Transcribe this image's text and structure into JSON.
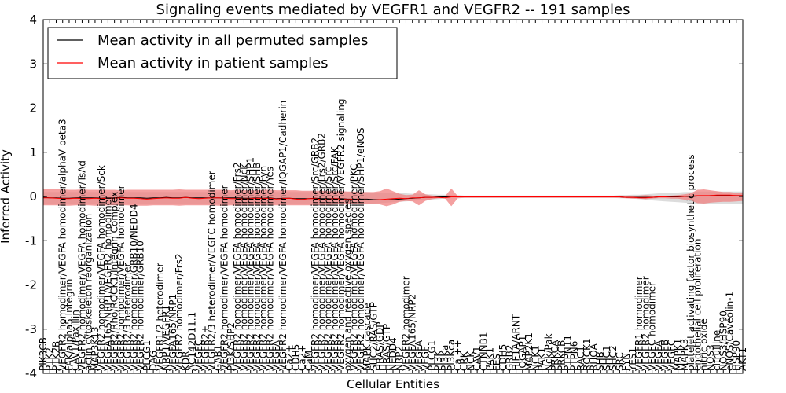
{
  "chart_data": {
    "type": "line",
    "title": "Signaling events mediated by VEGFR1 and VEGFR2 -- 191 samples",
    "xlabel": "Cellular Entities",
    "ylabel": "Inferred Activity",
    "ylim": [
      -4,
      4
    ],
    "yticks": [
      "-4",
      "-3",
      "-2",
      "-1",
      "0",
      "1",
      "2",
      "3",
      "4"
    ],
    "grid": false,
    "legend_position": "top-left",
    "legend": [
      {
        "name": "Mean activity in all permuted samples",
        "color": "#000000"
      },
      {
        "name": "Mean activity in patient samples",
        "color": "#ff0000"
      }
    ],
    "categories": [
      "PIK3CB",
      "PTK2",
      "PTK2B",
      "VEGFR2 homodimer/VEGFA homodimer/alphaV beta3",
      "FAK/alpha5 Integrin",
      "CAV1/Paxillin",
      "VEGFR2 homodimer/VEGFA homodimer/TsAd",
      "actin cytoskeleton reorganization",
      "MAP3K13",
      "VEGFR2 homodimer/VEGFA homodimer/Sck",
      "VEGFA165/NRP1/VEGFR2 homodimer",
      "VEGFR2/Rho/ROCK1/Integrin Complex",
      "VEGFR2 homodimer/VEGFA homodimer",
      "VEGFR2/3 heterodimer",
      "VEGFR2 homodimer/GRB10/NEDD4",
      "VEGFR2 homodimer/GRB10",
      "PLCG1",
      "DAG",
      "VEGFR1/2 heterodimer",
      "NRP1/VEGFR1",
      "VEGFA165/NRP1",
      "VEGFR2 homodimer/Frs2",
      "KDR",
      "AC142D11.1",
      "VEGFC",
      "VEGFR2+",
      "VEGFR2/3 heterodimer/VEGFC homodimer",
      "GAB1",
      "VEGFR2 homodimer/VEGFA homodimer",
      "PI3K/SHP2",
      "VEGFR2 homodimer/VEGFA homodimer/Frs2",
      "VEGFR2 homodimer/VEGFA homodimer/Nck",
      "VEGFR2 homodimer/VEGFA homodimer/SHP1",
      "VEGFR2 homodimer/VEGFA homodimer/SHB",
      "VEGFR2 homodimer/VEGFA homodimer/Fyn",
      "VEGFR2 homodimer/VEGFA homodimer/Yes",
      "VEGFA",
      "VEGFR2 homodimer/VEGFA homodimer/IQGAP1/Cadherin",
      "Ca2+",
      "CDH5",
      "Ca2+",
      "CaM",
      "VEGFR2 homodimer/VEGFA homodimer/Src/GRB2",
      "VEGFR2 homodimer/VEGFA homodimer/Frs2/GRB2",
      "VEGFR2 homodimer/VEGFA homodimer/Src",
      "VEGFR2 homodimer/VEGFA homodimer/Src/FAK",
      "VEGFR2 homodimer/VEGFA homodimer/VEGFR2 signaling",
      "oxygen and reactive oxygen species",
      "VEGFR2 homodimer/VEGFA homodimer/PKC",
      "VEGFR2 homodimer/VEGFA homodimer/SHP1/eNOS",
      "MAPK cascade",
      "SHC2/RAS/GTP",
      "HRAS/GDP",
      "HRAS/GTP",
      "NEDD4",
      "NRP2",
      "VEGFR2 homodimer",
      "VEGFA165/NRP2",
      "VEGFA",
      "VEGF",
      "PLCG1",
      "PI3K",
      "PI3Ka",
      "PI3Kca",
      "Ca ++",
      "CRK",
      "NCK",
      "CAV1",
      "CTNNB1",
      "PAK1",
      "FES",
      "CDH5",
      "GRB2",
      "HIF1A/ARNT",
      "IQGAP1",
      "MAP2K1",
      "NCK1",
      "PAK1",
      "Nck/Pak",
      "PRKCA",
      "PRKCB",
      "PTPN11",
      "PTPN6",
      "RAC1",
      "ROCK1",
      "RHOA",
      "SHB",
      "SHC1",
      "SHC2",
      "SRC",
      "FYN",
      "YES1",
      "VEGFR1 homodimer",
      "VEGFR2 homodimer",
      "VEGFC homodimer",
      "VEGFA",
      "VEGFB",
      "VEGFC",
      "MAPK1",
      "MAPK3",
      "platelet activating factor biosynthetic process",
      "endothelial cell proliferation",
      "nitric oxide",
      "NOS3",
      "citrulline",
      "NOS3/HSP90",
      "eNOS/Caveolin-1",
      "HSP90",
      "AKT1"
    ],
    "tick_labels": [
      "PIK3CB",
      "PTK2",
      "PTK2B",
      "VEGFR2 homodimer/VEGFA homodimer/alphaV beta3",
      "FAK/alpha5 Integrin",
      "CAV1/Paxillin",
      "VEGFR2 homodimer/VEGFA homodimer/TsAd",
      "actin cytoskeleton reorganization",
      "MAP3K13",
      "VEGFR2 homodimer/VEGFA homodimer/Sck",
      "VEGFA165/NRP1/VEGFR2 homodimer",
      "VEGFR2/Rho/ROCK1/Integrin Complex",
      "VEGFR2 homodimer/VEGFA homodimer",
      "VEGFR2/3 heterodimer",
      "VEGFR2 homodimer/GRB10/NEDD4",
      "VEGFR2 homodimer/GRB10",
      "PLCG1",
      "DAG",
      "VEGFR1/2 heterodimer",
      "NRP1/VEGFR1",
      "VEGFA165/NRP1",
      "VEGFR2 homodimer/Frs2",
      "KDR",
      "AC142D11.1",
      "VEGFC",
      "VEGFR2+",
      "VEGFR2/3 heterodimer/VEGFC homodimer",
      "GAB1",
      "VEGFR2 homodimer/VEGFA homodimer",
      "PI3K/SHP2",
      "VEGFR2 homodimer/VEGFA homodimer/Frs2",
      "VEGFR2 homodimer/VEGFA homodimer/Nck",
      "VEGFR2 homodimer/VEGFA homodimer/SHP1",
      "VEGFR2 homodimer/VEGFA homodimer/SHB",
      "VEGFR2 homodimer/VEGFA homodimer/Fyn",
      "VEGFR2 homodimer/VEGFA homodimer/Yes",
      "VEGFA",
      "VEGFR2 homodimer/VEGFA homodimer/IQGAP1/Cadherin",
      "Ca2+",
      "CDH5",
      "Ca2+",
      "CaM",
      "VEGFR2 homodimer/VEGFA homodimer/Src/GRB2",
      "VEGFR2 homodimer/VEGFA homodimer/Frs2/GRB2",
      "VEGFR2 homodimer/VEGFA homodimer/Src",
      "VEGFR2 homodimer/VEGFA homodimer/Src/FAK",
      "VEGFR2 homodimer/VEGFA homodimer/VEGFR2 signaling",
      "oxygen and reactive oxygen species",
      "VEGFR2 homodimer/VEGFA homodimer/PKC",
      "VEGFR2 homodimer/VEGFA homodimer/SHP1/eNOS",
      "MAPK cascade",
      "SHC2/RAS/GTP",
      "HRAS/GDP",
      "HRAS/GTP",
      "NEDD4",
      "NRP2",
      "VEGFR2 homodimer",
      "VEGFA165/NRP2",
      "VEGFA",
      "VEGF",
      "PLCG1",
      "PI3K",
      "PI3Ka",
      "PI3Kca",
      "Ca ++",
      "CRK",
      "NCK",
      "CAV1",
      "CTNNB1",
      "PAK1",
      "FES",
      "CDH5",
      "GRB2",
      "HIF1A/ARNT",
      "IQGAP1",
      "MAP2K1",
      "NCK1",
      "PAK1",
      "Nck/Pak",
      "PRKCA",
      "PRKCB",
      "PTPN11",
      "PTPN6",
      "RAC1",
      "ROCK1",
      "RHOA",
      "SHB",
      "SHC1",
      "SHC2",
      "SRC",
      "FYN",
      "YES1",
      "VEGFR1 homodimer",
      "VEGFR2 homodimer",
      "VEGFC homodimer",
      "VEGFA",
      "VEGFB",
      "VEGFC",
      "MAPK1",
      "MAPK3",
      "platelet activating factor biosynthetic process",
      "endothelial cell proliferation",
      "nitric oxide",
      "NOS3",
      "citrulline",
      "NOS3/HSP90",
      "eNOS/Caveolin-1",
      "HSP90",
      "AKT1"
    ],
    "series": [
      {
        "name": "Mean activity in all permuted samples",
        "color": "#000000",
        "values": [
          -0.02,
          -0.03,
          -0.03,
          -0.04,
          -0.04,
          -0.03,
          -0.03,
          -0.03,
          -0.03,
          -0.04,
          -0.03,
          -0.03,
          -0.02,
          -0.03,
          -0.03,
          -0.03,
          -0.04,
          -0.03,
          -0.03,
          -0.02,
          -0.03,
          -0.03,
          -0.02,
          -0.03,
          -0.03,
          -0.03,
          -0.03,
          -0.03,
          -0.03,
          -0.03,
          -0.03,
          -0.04,
          -0.04,
          -0.03,
          -0.04,
          -0.03,
          -0.05,
          -0.04,
          -0.04,
          -0.05,
          -0.05,
          -0.05,
          -0.04,
          -0.05,
          -0.05,
          -0.05,
          -0.05,
          -0.06,
          -0.06,
          -0.06,
          -0.06,
          -0.07,
          -0.07,
          -0.08,
          -0.07,
          -0.06,
          -0.05,
          -0.04,
          -0.03,
          -0.02,
          -0.02,
          -0.01,
          -0.01,
          -0.01,
          -0.01,
          -0.01,
          -0.01,
          -0.01,
          -0.01,
          -0.01,
          -0.01,
          -0.01,
          -0.01,
          -0.01,
          -0.01,
          -0.01,
          -0.01,
          -0.01,
          -0.01,
          -0.01,
          -0.01,
          -0.01,
          -0.01,
          -0.01,
          -0.01,
          -0.01,
          -0.01,
          -0.01,
          -0.01,
          -0.01,
          -0.02,
          -0.02,
          -0.02,
          -0.02,
          -0.02,
          -0.01,
          -0.01,
          -0.01,
          -0.01,
          0.0,
          0.0,
          0.01,
          0.01,
          0.02,
          0.02,
          0.02,
          0.02,
          0.02,
          0.02
        ]
      },
      {
        "name": "Mean activity in patient samples",
        "color": "#ff0000",
        "values": [
          -0.03,
          -0.03,
          -0.04,
          -0.05,
          -0.05,
          -0.04,
          -0.05,
          -0.05,
          -0.04,
          -0.05,
          -0.04,
          -0.04,
          -0.03,
          -0.04,
          -0.04,
          -0.05,
          -0.06,
          -0.05,
          -0.04,
          -0.03,
          -0.04,
          -0.04,
          -0.02,
          -0.04,
          -0.05,
          -0.04,
          -0.03,
          -0.03,
          -0.04,
          -0.05,
          -0.05,
          -0.06,
          -0.05,
          -0.04,
          -0.05,
          -0.04,
          -0.06,
          -0.05,
          -0.04,
          -0.06,
          -0.07,
          -0.05,
          -0.05,
          -0.07,
          -0.06,
          -0.05,
          -0.06,
          -0.07,
          -0.06,
          -0.07,
          -0.08,
          -0.08,
          -0.07,
          -0.06,
          -0.05,
          -0.04,
          -0.05,
          -0.03,
          -0.03,
          -0.02,
          -0.02,
          -0.02,
          -0.03,
          -0.01,
          -0.01,
          -0.01,
          -0.01,
          -0.01,
          -0.01,
          -0.01,
          -0.01,
          -0.01,
          -0.01,
          -0.01,
          -0.01,
          -0.01,
          -0.01,
          -0.01,
          -0.01,
          -0.01,
          -0.01,
          -0.01,
          -0.01,
          -0.01,
          -0.01,
          -0.01,
          -0.01,
          -0.01,
          -0.01,
          -0.01,
          -0.02,
          -0.02,
          -0.03,
          -0.03,
          -0.02,
          -0.01,
          -0.01,
          0.0,
          0.0,
          0.0,
          0.01,
          0.02,
          0.02,
          0.02,
          0.03,
          0.03,
          0.03,
          0.02,
          0.02
        ]
      }
    ],
    "bands": [
      {
        "name": "permuted spread",
        "color": "#d3d3d3",
        "upper": [
          0.1,
          0.1,
          0.1,
          0.1,
          0.1,
          0.1,
          0.1,
          0.1,
          0.1,
          0.1,
          0.1,
          0.1,
          0.1,
          0.1,
          0.1,
          0.1,
          0.1,
          0.1,
          0.1,
          0.1,
          0.1,
          0.1,
          0.1,
          0.1,
          0.1,
          0.1,
          0.1,
          0.1,
          0.1,
          0.1,
          0.1,
          0.1,
          0.1,
          0.1,
          0.1,
          0.1,
          0.1,
          0.1,
          0.1,
          0.1,
          0.1,
          0.1,
          0.1,
          0.1,
          0.1,
          0.1,
          0.1,
          0.1,
          0.1,
          0.1,
          0.1,
          0.08,
          0.08,
          0.08,
          0.08,
          0.07,
          0.07,
          0.06,
          0.06,
          0.05,
          0.05,
          0.04,
          0.04,
          0.03,
          0.03,
          0.02,
          0.02,
          0.02,
          0.02,
          0.02,
          0.02,
          0.02,
          0.02,
          0.02,
          0.02,
          0.02,
          0.02,
          0.02,
          0.02,
          0.02,
          0.02,
          0.02,
          0.02,
          0.02,
          0.02,
          0.02,
          0.02,
          0.02,
          0.02,
          0.03,
          0.03,
          0.04,
          0.04,
          0.05,
          0.06,
          0.07,
          0.08,
          0.08,
          0.09,
          0.1,
          0.1,
          0.11,
          0.11,
          0.11,
          0.11,
          0.11,
          0.11,
          0.11,
          0.11
        ],
        "lower": [
          -0.18,
          -0.18,
          -0.18,
          -0.18,
          -0.18,
          -0.18,
          -0.18,
          -0.18,
          -0.18,
          -0.18,
          -0.18,
          -0.18,
          -0.18,
          -0.18,
          -0.18,
          -0.18,
          -0.18,
          -0.18,
          -0.18,
          -0.18,
          -0.18,
          -0.18,
          -0.18,
          -0.18,
          -0.18,
          -0.18,
          -0.18,
          -0.18,
          -0.18,
          -0.18,
          -0.18,
          -0.18,
          -0.18,
          -0.18,
          -0.18,
          -0.18,
          -0.18,
          -0.18,
          -0.18,
          -0.18,
          -0.18,
          -0.18,
          -0.18,
          -0.18,
          -0.18,
          -0.18,
          -0.18,
          -0.18,
          -0.18,
          -0.18,
          -0.18,
          -0.16,
          -0.15,
          -0.14,
          -0.13,
          -0.12,
          -0.11,
          -0.1,
          -0.09,
          -0.08,
          -0.07,
          -0.06,
          -0.05,
          -0.04,
          -0.04,
          -0.03,
          -0.03,
          -0.03,
          -0.03,
          -0.03,
          -0.03,
          -0.03,
          -0.03,
          -0.03,
          -0.03,
          -0.03,
          -0.03,
          -0.03,
          -0.03,
          -0.03,
          -0.03,
          -0.03,
          -0.03,
          -0.03,
          -0.03,
          -0.03,
          -0.03,
          -0.03,
          -0.03,
          -0.04,
          -0.04,
          -0.05,
          -0.06,
          -0.07,
          -0.09,
          -0.1,
          -0.11,
          -0.12,
          -0.13,
          -0.14,
          -0.15,
          -0.16,
          -0.16,
          -0.17,
          -0.17,
          -0.17,
          -0.17,
          -0.17,
          -0.17
        ]
      },
      {
        "name": "patient spread",
        "color": "#f08080",
        "upper": [
          0.16,
          0.16,
          0.16,
          0.16,
          0.15,
          0.15,
          0.16,
          0.15,
          0.15,
          0.15,
          0.15,
          0.15,
          0.14,
          0.15,
          0.15,
          0.15,
          0.15,
          0.15,
          0.15,
          0.15,
          0.15,
          0.16,
          0.15,
          0.15,
          0.15,
          0.15,
          0.15,
          0.15,
          0.15,
          0.14,
          0.15,
          0.14,
          0.14,
          0.14,
          0.15,
          0.15,
          0.14,
          0.14,
          0.14,
          0.14,
          0.13,
          0.13,
          0.13,
          0.13,
          0.12,
          0.12,
          0.12,
          0.11,
          0.11,
          0.1,
          0.1,
          0.1,
          0.12,
          0.18,
          0.12,
          0.06,
          0.03,
          0.04,
          0.14,
          0.05,
          0.02,
          0.01,
          0.0,
          0.18,
          0.01,
          0.01,
          0.01,
          0.01,
          0.01,
          0.01,
          0.01,
          0.01,
          0.01,
          0.01,
          0.01,
          0.01,
          0.01,
          0.01,
          0.01,
          0.01,
          0.01,
          0.01,
          0.01,
          0.01,
          0.01,
          0.01,
          0.01,
          0.01,
          0.01,
          0.01,
          0.01,
          0.0,
          0.02,
          0.03,
          0.02,
          0.01,
          0.01,
          0.02,
          0.03,
          0.05,
          0.07,
          0.15,
          0.16,
          0.14,
          0.12,
          0.1,
          0.1,
          0.08,
          0.07
        ],
        "lower": [
          -0.2,
          -0.2,
          -0.2,
          -0.21,
          -0.21,
          -0.2,
          -0.2,
          -0.2,
          -0.21,
          -0.21,
          -0.2,
          -0.2,
          -0.2,
          -0.2,
          -0.21,
          -0.21,
          -0.21,
          -0.2,
          -0.2,
          -0.2,
          -0.2,
          -0.21,
          -0.2,
          -0.2,
          -0.2,
          -0.2,
          -0.2,
          -0.21,
          -0.21,
          -0.2,
          -0.21,
          -0.2,
          -0.2,
          -0.2,
          -0.2,
          -0.2,
          -0.2,
          -0.2,
          -0.2,
          -0.2,
          -0.2,
          -0.2,
          -0.2,
          -0.19,
          -0.19,
          -0.18,
          -0.18,
          -0.18,
          -0.17,
          -0.17,
          -0.16,
          -0.16,
          -0.18,
          -0.22,
          -0.18,
          -0.12,
          -0.1,
          -0.11,
          -0.2,
          -0.1,
          -0.06,
          -0.04,
          -0.04,
          -0.22,
          -0.04,
          -0.03,
          -0.03,
          -0.03,
          -0.03,
          -0.03,
          -0.03,
          -0.03,
          -0.03,
          -0.03,
          -0.03,
          -0.03,
          -0.03,
          -0.03,
          -0.03,
          -0.03,
          -0.03,
          -0.03,
          -0.03,
          -0.03,
          -0.03,
          -0.03,
          -0.03,
          -0.03,
          -0.03,
          -0.03,
          -0.04,
          -0.05,
          -0.05,
          -0.06,
          -0.05,
          -0.04,
          -0.04,
          -0.05,
          -0.05,
          -0.07,
          -0.09,
          -0.15,
          -0.16,
          -0.14,
          -0.13,
          -0.12,
          -0.12,
          -0.11,
          -0.1
        ]
      }
    ]
  }
}
